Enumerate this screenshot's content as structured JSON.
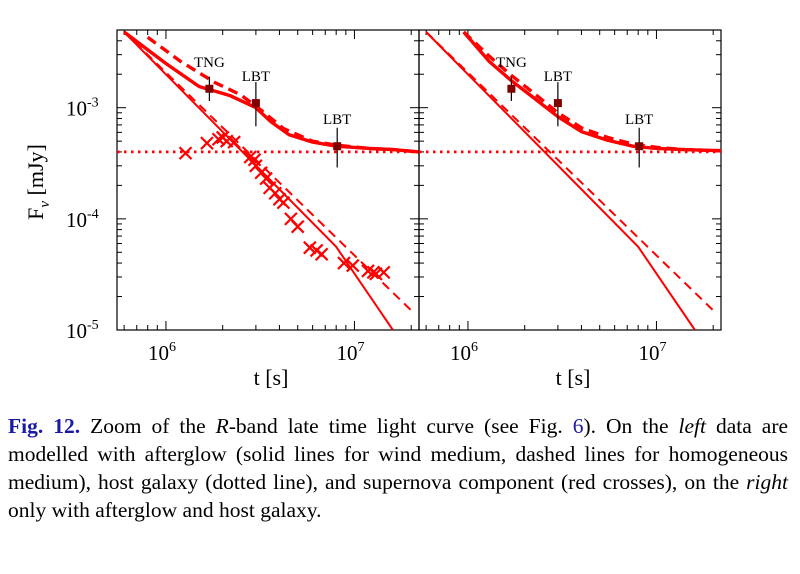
{
  "chart_data": [
    {
      "type": "line",
      "panel": "left",
      "xscale": "log",
      "yscale": "log",
      "xlabel": "t [s]",
      "ylabel": "F_ν [mJy]",
      "xlim": [
        550000,
        22000000
      ],
      "ylim": [
        1e-05,
        0.005
      ],
      "x_ticks": [
        "10^6",
        "10^7"
      ],
      "y_ticks": [
        "10^-3",
        "10^-4",
        "10^-5"
      ],
      "series": [
        {
          "style": "solid-thin",
          "x": [
            600000,
            8000000,
            16000000
          ],
          "y": [
            0.0048,
            5.6e-05,
            1e-05
          ]
        },
        {
          "style": "dashed-thin",
          "x": [
            600000,
            20000000
          ],
          "y": [
            0.0048,
            1.5e-05
          ]
        },
        {
          "style": "solid-thick",
          "x": [
            600000,
            1000000,
            1500000,
            2200000,
            3000000,
            3600000,
            4500000,
            6000000,
            8000000,
            12000000,
            16000000,
            22000000
          ],
          "y": [
            0.0048,
            0.0025,
            0.00155,
            0.00128,
            0.001,
            0.00075,
            0.00057,
            0.00049,
            0.00045,
            0.00043,
            0.00042,
            0.0004
          ]
        },
        {
          "style": "dashed-thick",
          "x": [
            800000,
            1200000,
            1800000,
            2500000,
            3200000,
            4200000,
            6000000,
            8000000,
            12000000,
            16000000,
            22000000
          ],
          "y": [
            0.0043,
            0.0026,
            0.0017,
            0.0013,
            0.00095,
            0.00065,
            0.0005,
            0.00046,
            0.00043,
            0.00042,
            0.0004
          ]
        },
        {
          "style": "dotted",
          "x": [
            550000,
            22000000
          ],
          "y": [
            0.0004,
            0.0004
          ]
        },
        {
          "style": "cross",
          "x": [
            1270000,
            1650000,
            1900000,
            2000000,
            2100000,
            2300000,
            2800000,
            2950000,
            3000000,
            3200000,
            3400000,
            3550000,
            3800000,
            4000000,
            4200000,
            4600000,
            5000000,
            5800000,
            6300000,
            6700000,
            8800000,
            9800000,
            11800000,
            12600000,
            13000000,
            14300000
          ],
          "y": [
            0.00039,
            0.00048,
            0.00052,
            0.00054,
            0.0005,
            0.00049,
            0.00036,
            0.00034,
            0.0003,
            0.00026,
            0.00023,
            0.00019,
            0.00017,
            0.00015,
            0.00014,
            0.0001,
            8.5e-05,
            5.5e-05,
            5.2e-05,
            4.8e-05,
            4e-05,
            3.8e-05,
            3.4e-05,
            3.3e-05,
            3.2e-05,
            3.3e-05
          ]
        },
        {
          "style": "square",
          "x": [
            1700000,
            3000000,
            8100000
          ],
          "y": [
            0.00148,
            0.0011,
            0.00045
          ],
          "err": [
            [
              0.00115,
              0.0019
            ],
            [
              0.00068,
              0.0017
            ],
            [
              0.00029,
              0.00066
            ]
          ],
          "labels": [
            "TNG",
            "LBT",
            "LBT"
          ]
        }
      ]
    },
    {
      "type": "line",
      "panel": "right",
      "xscale": "log",
      "yscale": "log",
      "xlabel": "t [s]",
      "xlim": [
        550000,
        22000000
      ],
      "ylim": [
        1e-05,
        0.005
      ],
      "x_ticks": [
        "10^6",
        "10^7"
      ],
      "series": [
        {
          "style": "solid-thin",
          "x": [
            600000,
            8000000,
            16000000
          ],
          "y": [
            0.0048,
            5.6e-05,
            1e-05
          ]
        },
        {
          "style": "dashed-thin",
          "x": [
            600000,
            20000000
          ],
          "y": [
            0.0048,
            1.5e-05
          ]
        },
        {
          "style": "solid-thick",
          "x": [
            950000,
            1300000,
            1700000,
            2200000,
            3000000,
            4000000,
            5500000,
            7500000,
            10000000,
            14000000,
            22000000
          ],
          "y": [
            0.0048,
            0.0026,
            0.00175,
            0.00125,
            0.00083,
            0.00061,
            0.00051,
            0.00045,
            0.00043,
            0.00042,
            0.00041
          ]
        },
        {
          "style": "dashed-thick",
          "x": [
            950000,
            1300000,
            1700000,
            2200000,
            3000000,
            4000000,
            5500000,
            7500000,
            10000000,
            14000000,
            22000000
          ],
          "y": [
            0.0048,
            0.0029,
            0.00195,
            0.00138,
            0.0009,
            0.00066,
            0.00054,
            0.00047,
            0.00044,
            0.00042,
            0.00041
          ]
        },
        {
          "style": "dotted",
          "x": [
            550000,
            22000000
          ],
          "y": [
            0.0004,
            0.0004
          ]
        },
        {
          "style": "square",
          "x": [
            1700000,
            3000000,
            8100000
          ],
          "y": [
            0.00148,
            0.0011,
            0.00045
          ],
          "err": [
            [
              0.00115,
              0.0019
            ],
            [
              0.00068,
              0.0017
            ],
            [
              0.00029,
              0.00066
            ]
          ],
          "labels": [
            "TNG",
            "LBT",
            "LBT"
          ]
        }
      ]
    }
  ],
  "colors": {
    "curves": "#ff0000",
    "points": "#800000",
    "caption_ref": "#1a1aa6"
  },
  "caption": {
    "label": "Fig. 12.",
    "t1": " Zoom of the ",
    "band": "R",
    "t2": "-band late time light curve (see Fig. ",
    "fig_ref": "6",
    "t3": "). On the ",
    "left_word": "left",
    "t4": " data are modelled with afterglow (solid lines for wind medium, dashed lines for homogeneous medium), host galaxy (dotted line), and supernova component (red crosses), on the ",
    "right_word": "right",
    "t5": " only with afterglow and host galaxy."
  }
}
